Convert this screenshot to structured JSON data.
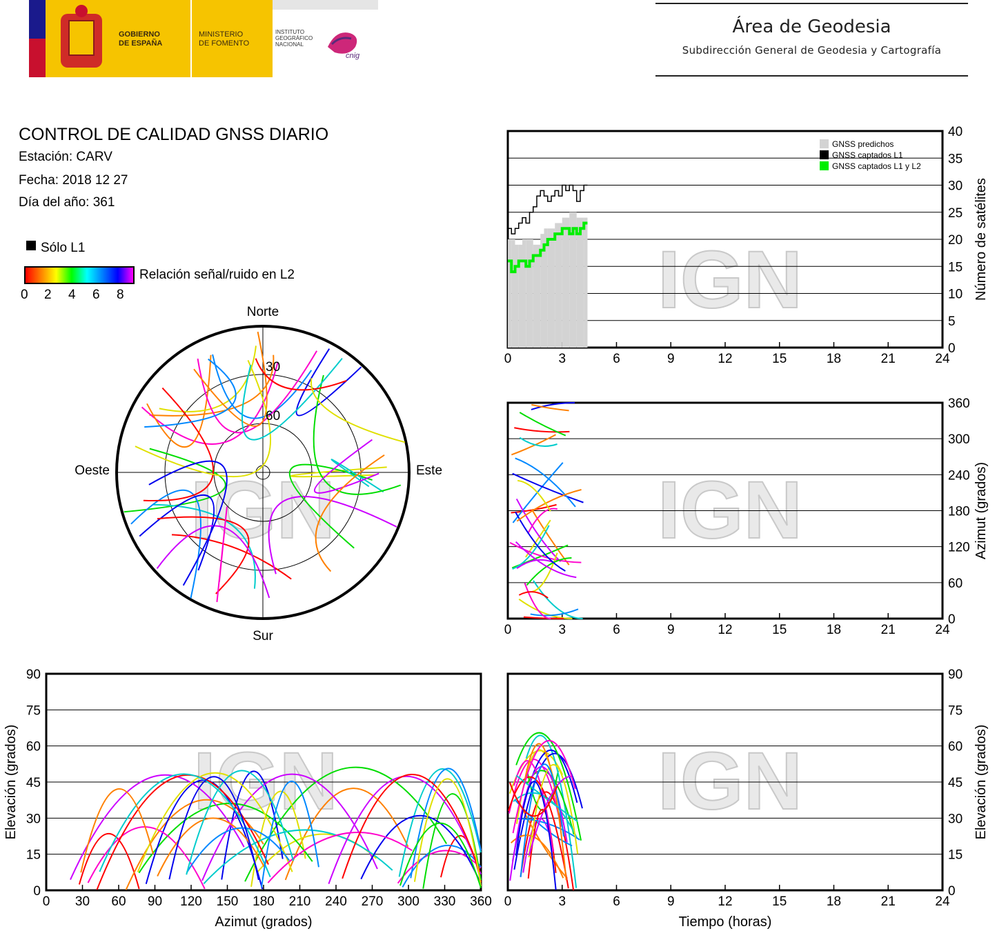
{
  "header": {
    "gob_label": "GOBIERNO\nDE ESPAÑA",
    "ministerio_label": "MINISTERIO\nDE FOMENTO",
    "instituto_label": "INSTITUTO\nGEOGRÁFICO\nNACIONAL",
    "cnig_label": "cnig",
    "area_title": "Área de Geodesia",
    "area_subtitle": "Subdirección General de Geodesia y Cartografía"
  },
  "info": {
    "title": "CONTROL DE CALIDAD GNSS DIARIO",
    "station": "Estación: CARV",
    "date": "Fecha: 2018 12 27",
    "doy": "Día del año: 361"
  },
  "legend": {
    "solo_l1": "Sólo L1",
    "snr_label": "Relación señal/ruido en L2",
    "snr_ticks": [
      "0",
      "2",
      "4",
      "6",
      "8"
    ]
  },
  "watermark": "IGN",
  "colors": {
    "predicted": "#d3d3d3",
    "l1": "#000000",
    "l1l2": "#00ee00",
    "grid": "#000000"
  },
  "chart_data": [
    {
      "type": "line",
      "id": "satellites_vs_time",
      "xlabel": "",
      "ylabel": "Número de satélites",
      "xlim": [
        0,
        24
      ],
      "ylim": [
        0,
        40
      ],
      "xticks": [
        "0",
        "3",
        "6",
        "9",
        "12",
        "15",
        "18",
        "21",
        "24"
      ],
      "yticks": [
        "0",
        "5",
        "10",
        "15",
        "20",
        "25",
        "30",
        "35",
        "40"
      ],
      "legend": [
        "GNSS predichos",
        "GNSS captados L1",
        "GNSS captados L1 y L2"
      ],
      "legend_position": "top-right",
      "series": [
        {
          "name": "GNSS predichos",
          "x": [
            0,
            0.2,
            0.4,
            0.6,
            0.8,
            1.0,
            1.2,
            1.4,
            1.6,
            1.8,
            2.0,
            2.2,
            2.4,
            2.6,
            2.8,
            3.0,
            3.2,
            3.4,
            3.6,
            3.8,
            4.0,
            4.2
          ],
          "y": [
            20,
            20,
            19,
            19,
            20,
            20,
            20,
            19,
            19,
            21,
            22,
            22,
            22,
            23,
            23,
            24,
            24,
            25,
            25,
            24,
            24,
            24
          ]
        },
        {
          "name": "GNSS captados L1",
          "x": [
            0,
            0.2,
            0.4,
            0.6,
            0.8,
            1.0,
            1.2,
            1.4,
            1.6,
            1.8,
            2.0,
            2.2,
            2.4,
            2.6,
            2.8,
            3.0,
            3.2,
            3.4,
            3.6,
            3.8,
            4.0,
            4.2
          ],
          "y": [
            22,
            21,
            22,
            23,
            24,
            23,
            25,
            26,
            28,
            29,
            28,
            27,
            28,
            29,
            28,
            30,
            29,
            30,
            29,
            27,
            29,
            30
          ]
        },
        {
          "name": "GNSS captados L1 y L2",
          "x": [
            0,
            0.2,
            0.4,
            0.6,
            0.8,
            1.0,
            1.2,
            1.4,
            1.6,
            1.8,
            2.0,
            2.2,
            2.4,
            2.6,
            2.8,
            3.0,
            3.2,
            3.4,
            3.6,
            3.8,
            4.0,
            4.2
          ],
          "y": [
            16,
            14,
            15,
            16,
            16,
            15,
            16,
            17,
            17,
            18,
            19,
            20,
            20,
            21,
            21,
            22,
            22,
            21,
            22,
            21,
            22,
            23
          ]
        }
      ]
    },
    {
      "type": "scatter",
      "id": "azimuth_vs_time",
      "ylabel": "Azimut (grados)",
      "xlim": [
        0,
        24
      ],
      "ylim": [
        0,
        360
      ],
      "xticks": [
        "0",
        "3",
        "6",
        "9",
        "12",
        "15",
        "18",
        "21",
        "24"
      ],
      "yticks": [
        "0",
        "60",
        "120",
        "180",
        "240",
        "300",
        "360"
      ]
    },
    {
      "type": "scatter",
      "id": "elevation_vs_azimuth",
      "xlabel": "Azimut (grados)",
      "ylabel": "Elevación (grados)",
      "xlim": [
        0,
        360
      ],
      "ylim": [
        0,
        90
      ],
      "xticks": [
        "0",
        "30",
        "60",
        "90",
        "120",
        "150",
        "180",
        "210",
        "240",
        "270",
        "300",
        "330",
        "360"
      ],
      "yticks": [
        "0",
        "15",
        "30",
        "45",
        "60",
        "75",
        "90"
      ]
    },
    {
      "type": "scatter",
      "id": "elevation_vs_time",
      "xlabel": "Tiempo (horas)",
      "ylabel": "Elevación (grados)",
      "xlim": [
        0,
        24
      ],
      "ylim": [
        0,
        90
      ],
      "xticks": [
        "0",
        "3",
        "6",
        "9",
        "12",
        "15",
        "18",
        "21",
        "24"
      ],
      "yticks": [
        "0",
        "15",
        "30",
        "45",
        "60",
        "75",
        "90"
      ]
    },
    {
      "type": "scatter",
      "id": "skyplot",
      "directions": {
        "north": "Norte",
        "south": "Sur",
        "east": "Este",
        "west": "Oeste"
      },
      "rings": [
        "30",
        "60"
      ]
    }
  ]
}
